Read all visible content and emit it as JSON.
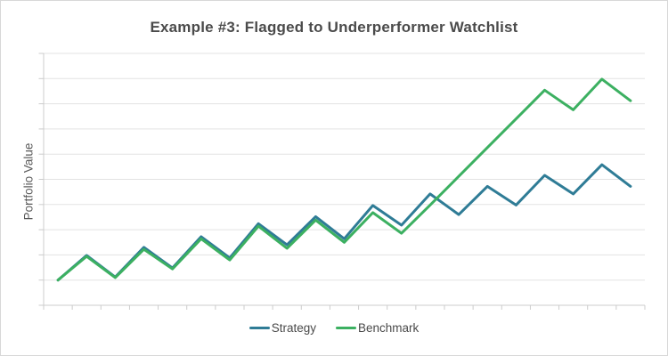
{
  "chart": {
    "title": "Example #3: Flagged to Underperformer Watchlist",
    "ylabel": "Portfolio Value"
  },
  "chart_data": {
    "type": "line",
    "x": [
      0,
      1,
      2,
      3,
      4,
      5,
      6,
      7,
      8,
      9,
      10,
      11,
      12,
      13,
      14,
      15,
      16,
      17,
      18,
      19,
      20
    ],
    "series": [
      {
        "name": "Strategy",
        "color": "#2f7c96",
        "values": [
          100.0,
          104.9,
          100.6,
          106.5,
          102.4,
          108.6,
          104.4,
          111.2,
          107.0,
          112.6,
          108.2,
          114.8,
          110.9,
          117.1,
          113.0,
          118.6,
          114.9,
          120.8,
          117.1,
          122.9,
          118.6
        ]
      },
      {
        "name": "Benchmark",
        "color": "#3cb061",
        "values": [
          100.0,
          104.7,
          100.5,
          106.1,
          102.2,
          108.2,
          104.0,
          110.7,
          106.3,
          111.9,
          107.5,
          113.4,
          109.3,
          114.9,
          120.6,
          126.3,
          132.0,
          137.7,
          133.8,
          139.9,
          135.6
        ]
      }
    ],
    "title": "Example #3: Flagged to Underperformer Watchlist",
    "xlabel": "",
    "ylabel": "Portfolio Value",
    "ylim": [
      95,
      145
    ],
    "grid": true,
    "gridline_interval": 5,
    "x_tick_count": 22,
    "axis_tick_labels_visible": false,
    "legend_position": "bottom-center",
    "colors": {
      "gridline": "#e3e3e3",
      "axis": "#cccccc",
      "widget_border": "#d8d8d8",
      "title_text": "#4b4b4b",
      "label_text": "#595959"
    }
  }
}
